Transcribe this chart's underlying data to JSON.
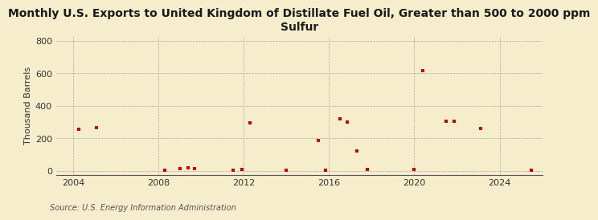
{
  "title": "Monthly U.S. Exports to United Kingdom of Distillate Fuel Oil, Greater than 500 to 2000 ppm\nSulfur",
  "ylabel": "Thousand Barrels",
  "source": "Source: U.S. Energy Information Administration",
  "background_color": "#f5edcc",
  "marker_color": "#cc0000",
  "xlim": [
    2003.2,
    2026.0
  ],
  "ylim": [
    -25,
    830
  ],
  "yticks": [
    0,
    200,
    400,
    600,
    800
  ],
  "xticks": [
    2004,
    2008,
    2012,
    2016,
    2020,
    2024
  ],
  "data_points": [
    [
      2004.25,
      255
    ],
    [
      2005.1,
      265
    ],
    [
      2008.3,
      5
    ],
    [
      2009.0,
      12
    ],
    [
      2009.4,
      18
    ],
    [
      2009.7,
      15
    ],
    [
      2011.5,
      5
    ],
    [
      2011.9,
      8
    ],
    [
      2012.3,
      295
    ],
    [
      2014.0,
      5
    ],
    [
      2015.5,
      185
    ],
    [
      2015.85,
      5
    ],
    [
      2016.5,
      320
    ],
    [
      2016.85,
      300
    ],
    [
      2017.3,
      120
    ],
    [
      2017.8,
      8
    ],
    [
      2020.0,
      8
    ],
    [
      2020.4,
      615
    ],
    [
      2021.5,
      305
    ],
    [
      2021.85,
      305
    ],
    [
      2023.1,
      260
    ],
    [
      2025.5,
      5
    ]
  ],
  "vgrid_years": [
    2004,
    2008,
    2012,
    2016,
    2020,
    2024
  ],
  "title_fontsize": 10,
  "label_fontsize": 8,
  "tick_fontsize": 8,
  "source_fontsize": 7
}
